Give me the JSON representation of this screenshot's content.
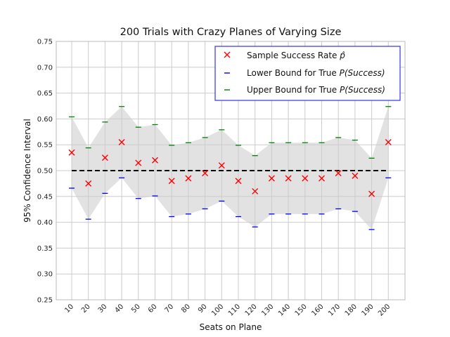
{
  "chart_data": {
    "type": "scatter",
    "title": "200 Trials with Crazy Planes of Varying Size",
    "xlabel": "Seats on Plane",
    "ylabel": "95% Confidence Interval",
    "ylim": [
      0.25,
      0.75
    ],
    "yticks": [
      0.25,
      0.3,
      0.35,
      0.4,
      0.45,
      0.5,
      0.55,
      0.6,
      0.65,
      0.7,
      0.75
    ],
    "categories": [
      "10",
      "20",
      "30",
      "40",
      "50",
      "60",
      "70",
      "80",
      "90",
      "100",
      "110",
      "120",
      "130",
      "140",
      "150",
      "160",
      "170",
      "180",
      "190",
      "200"
    ],
    "reference_line": 0.5,
    "grid": true,
    "legend_position": "top-right",
    "series": [
      {
        "name": "Sample Success Rate p̂",
        "marker": "x",
        "color": "#ff0000",
        "values": [
          0.535,
          0.475,
          0.525,
          0.555,
          0.515,
          0.52,
          0.48,
          0.485,
          0.495,
          0.51,
          0.48,
          0.46,
          0.485,
          0.485,
          0.485,
          0.485,
          0.495,
          0.49,
          0.455,
          0.555
        ]
      },
      {
        "name": "Lower Bound for True P(Success)",
        "marker": "_",
        "color": "#0000ff",
        "values": [
          0.466,
          0.406,
          0.456,
          0.486,
          0.446,
          0.451,
          0.411,
          0.416,
          0.426,
          0.441,
          0.411,
          0.391,
          0.416,
          0.416,
          0.416,
          0.416,
          0.426,
          0.421,
          0.386,
          0.486
        ]
      },
      {
        "name": "Upper Bound for True P(Success)",
        "marker": "_",
        "color": "#008000",
        "values": [
          0.604,
          0.544,
          0.594,
          0.624,
          0.584,
          0.589,
          0.549,
          0.554,
          0.564,
          0.579,
          0.549,
          0.529,
          0.554,
          0.554,
          0.554,
          0.554,
          0.564,
          0.559,
          0.524,
          0.624
        ]
      }
    ],
    "legend": {
      "entry1_prefix": "Sample Success Rate ",
      "entry1_symbol": "p̂",
      "entry2_prefix": "Lower Bound for True ",
      "entry2_math": "P(Success)",
      "entry3_prefix": "Upper Bound for True ",
      "entry3_math": "P(Success)"
    }
  }
}
